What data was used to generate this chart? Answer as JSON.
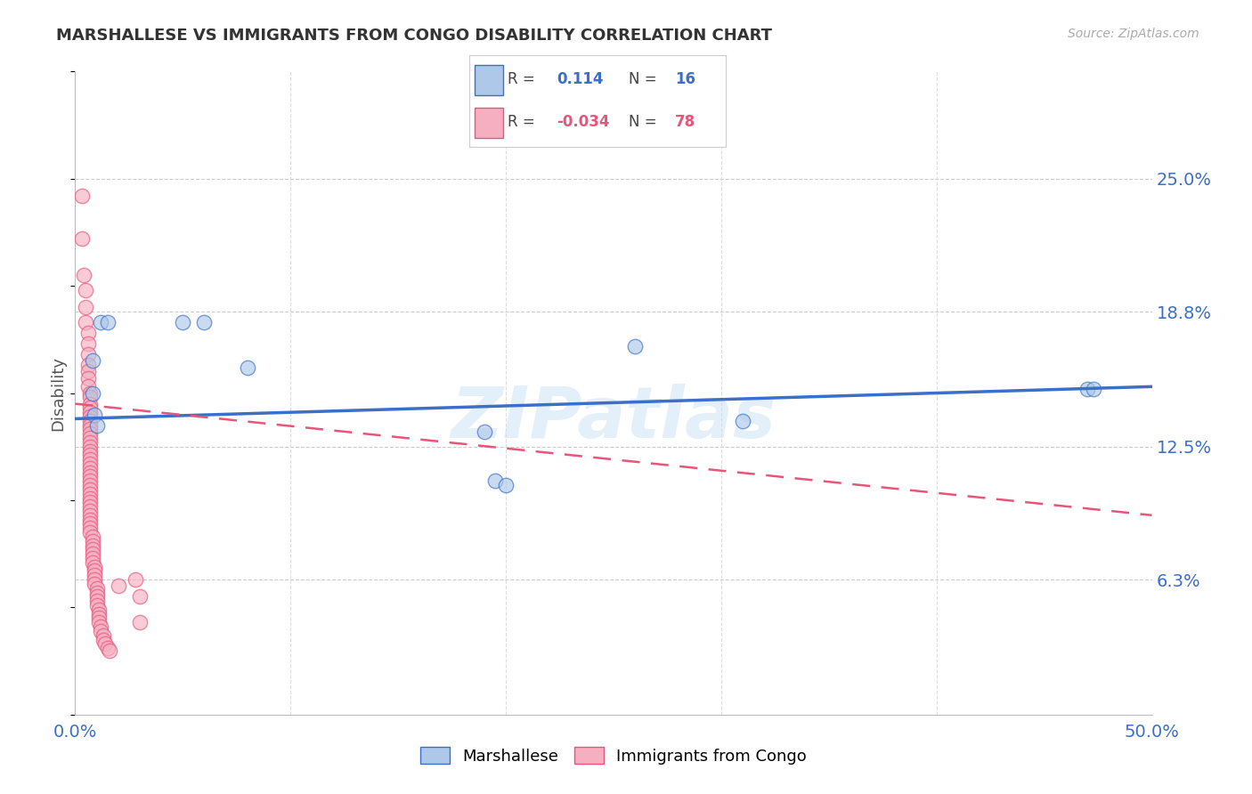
{
  "title": "MARSHALLESE VS IMMIGRANTS FROM CONGO DISABILITY CORRELATION CHART",
  "source": "Source: ZipAtlas.com",
  "ylabel": "Disability",
  "xlim": [
    0.0,
    0.5
  ],
  "ylim": [
    0.0,
    0.3
  ],
  "ytick_positions": [
    0.063,
    0.125,
    0.188,
    0.25
  ],
  "ytick_labels": [
    "6.3%",
    "12.5%",
    "18.8%",
    "25.0%"
  ],
  "marshallese_color": "#adc8e8",
  "congo_color": "#f5afc0",
  "marshallese_line_color": "#3b6fc9",
  "congo_line_color": "#e8557a",
  "watermark": "ZIPatlas",
  "blue_line": {
    "x0": 0.0,
    "y0": 0.138,
    "x1": 0.5,
    "y1": 0.153
  },
  "pink_line": {
    "x0": 0.0,
    "y0": 0.145,
    "x1": 0.5,
    "y1": 0.093
  },
  "marshallese_points": [
    [
      0.008,
      0.165
    ],
    [
      0.008,
      0.15
    ],
    [
      0.009,
      0.14
    ],
    [
      0.01,
      0.135
    ],
    [
      0.012,
      0.183
    ],
    [
      0.015,
      0.183
    ],
    [
      0.05,
      0.183
    ],
    [
      0.06,
      0.183
    ],
    [
      0.08,
      0.162
    ],
    [
      0.19,
      0.132
    ],
    [
      0.195,
      0.109
    ],
    [
      0.2,
      0.107
    ],
    [
      0.26,
      0.172
    ],
    [
      0.31,
      0.137
    ],
    [
      0.47,
      0.152
    ],
    [
      0.473,
      0.152
    ]
  ],
  "congo_points": [
    [
      0.003,
      0.242
    ],
    [
      0.003,
      0.222
    ],
    [
      0.004,
      0.205
    ],
    [
      0.005,
      0.198
    ],
    [
      0.005,
      0.19
    ],
    [
      0.005,
      0.183
    ],
    [
      0.006,
      0.178
    ],
    [
      0.006,
      0.173
    ],
    [
      0.006,
      0.168
    ],
    [
      0.006,
      0.163
    ],
    [
      0.006,
      0.16
    ],
    [
      0.006,
      0.157
    ],
    [
      0.006,
      0.153
    ],
    [
      0.007,
      0.15
    ],
    [
      0.007,
      0.148
    ],
    [
      0.007,
      0.145
    ],
    [
      0.007,
      0.143
    ],
    [
      0.007,
      0.141
    ],
    [
      0.007,
      0.139
    ],
    [
      0.007,
      0.137
    ],
    [
      0.007,
      0.135
    ],
    [
      0.007,
      0.133
    ],
    [
      0.007,
      0.131
    ],
    [
      0.007,
      0.129
    ],
    [
      0.007,
      0.127
    ],
    [
      0.007,
      0.125
    ],
    [
      0.007,
      0.123
    ],
    [
      0.007,
      0.121
    ],
    [
      0.007,
      0.119
    ],
    [
      0.007,
      0.117
    ],
    [
      0.007,
      0.115
    ],
    [
      0.007,
      0.113
    ],
    [
      0.007,
      0.111
    ],
    [
      0.007,
      0.109
    ],
    [
      0.007,
      0.107
    ],
    [
      0.007,
      0.105
    ],
    [
      0.007,
      0.103
    ],
    [
      0.007,
      0.101
    ],
    [
      0.007,
      0.099
    ],
    [
      0.007,
      0.097
    ],
    [
      0.007,
      0.095
    ],
    [
      0.007,
      0.093
    ],
    [
      0.007,
      0.091
    ],
    [
      0.007,
      0.089
    ],
    [
      0.007,
      0.087
    ],
    [
      0.007,
      0.085
    ],
    [
      0.008,
      0.083
    ],
    [
      0.008,
      0.081
    ],
    [
      0.008,
      0.079
    ],
    [
      0.008,
      0.077
    ],
    [
      0.008,
      0.075
    ],
    [
      0.008,
      0.073
    ],
    [
      0.008,
      0.071
    ],
    [
      0.009,
      0.069
    ],
    [
      0.009,
      0.067
    ],
    [
      0.009,
      0.065
    ],
    [
      0.009,
      0.063
    ],
    [
      0.009,
      0.061
    ],
    [
      0.01,
      0.059
    ],
    [
      0.01,
      0.057
    ],
    [
      0.01,
      0.055
    ],
    [
      0.01,
      0.053
    ],
    [
      0.01,
      0.051
    ],
    [
      0.011,
      0.049
    ],
    [
      0.011,
      0.047
    ],
    [
      0.011,
      0.045
    ],
    [
      0.011,
      0.043
    ],
    [
      0.012,
      0.041
    ],
    [
      0.012,
      0.039
    ],
    [
      0.013,
      0.037
    ],
    [
      0.013,
      0.035
    ],
    [
      0.014,
      0.033
    ],
    [
      0.015,
      0.031
    ],
    [
      0.016,
      0.03
    ],
    [
      0.02,
      0.06
    ],
    [
      0.028,
      0.063
    ],
    [
      0.03,
      0.055
    ],
    [
      0.03,
      0.043
    ]
  ]
}
